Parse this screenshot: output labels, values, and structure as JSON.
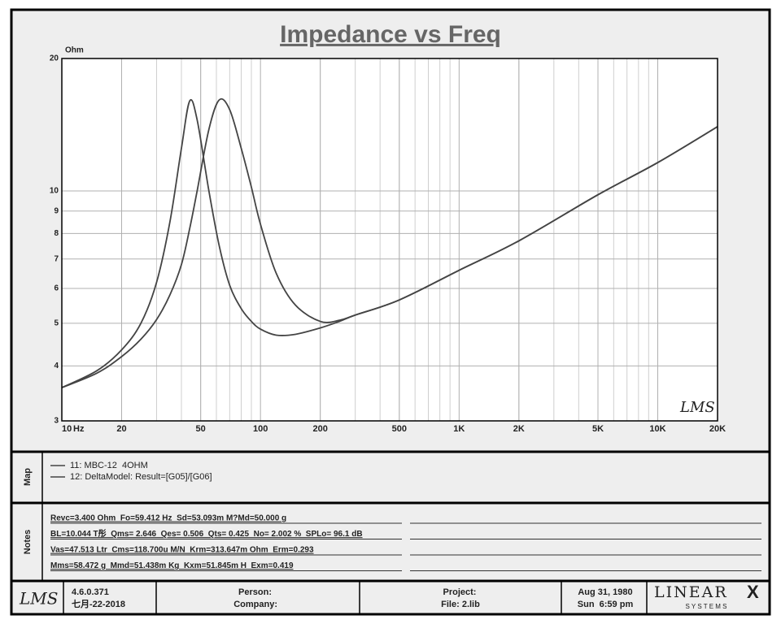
{
  "chart_data": {
    "type": "line",
    "title": "Impedance vs Freq",
    "y_unit": "Ohm",
    "x_unit": "Hz",
    "log_x": true,
    "log_y": true,
    "grid": true,
    "x": [
      10,
      15,
      20,
      25,
      30,
      35,
      40,
      44,
      48,
      55,
      62,
      70,
      80,
      90,
      100,
      120,
      150,
      200,
      250,
      300,
      500,
      1000,
      2000,
      5000,
      10000,
      20000
    ],
    "xlim": [
      10,
      20000
    ],
    "ylim": [
      3,
      20
    ],
    "xticks": [
      10,
      20,
      50,
      100,
      200,
      500,
      {
        "value": 1000,
        "label": "1K"
      },
      {
        "value": 2000,
        "label": "2K"
      },
      {
        "value": 5000,
        "label": "5K"
      },
      {
        "value": 10000,
        "label": "10K"
      },
      {
        "value": 20000,
        "label": "20K"
      }
    ],
    "yticks": [
      3,
      4,
      5,
      6,
      7,
      8,
      9,
      10,
      20
    ],
    "series": [
      {
        "name": "11: MBC-12  4OHM",
        "color": "#444444",
        "values": [
          3.57,
          3.9,
          4.35,
          5.0,
          6.2,
          8.5,
          12.5,
          16.0,
          14.5,
          10.0,
          7.5,
          6.1,
          5.4,
          5.05,
          4.85,
          4.7,
          4.72,
          4.88,
          5.05,
          5.22,
          5.65,
          6.6,
          7.7,
          9.8,
          11.6,
          14.0
        ]
      },
      {
        "name": "12: DeltaModel: Result=[G05]/[G06]",
        "color": "#444444",
        "values": [
          3.57,
          3.85,
          4.2,
          4.6,
          5.1,
          5.8,
          6.8,
          8.2,
          10.0,
          13.8,
          16.1,
          15.3,
          12.5,
          10.2,
          8.4,
          6.5,
          5.5,
          5.05,
          5.08,
          5.22,
          5.65,
          6.6,
          7.7,
          9.8,
          11.6,
          14.0
        ]
      }
    ]
  },
  "map": {
    "label": "Map"
  },
  "notes": {
    "label": "Notes",
    "lines": [
      "Revc=3.400 Ohm  Fo=59.412 Hz  Sd=53.093m M?Md=50.000 g",
      "BL=10.044 T彤  Qms= 2.646  Qes= 0.506  Qts= 0.425  No= 2.002 %  SPLo= 96.1 dB",
      "Vas=47.513 Ltr  Cms=118.700u M/N  Krm=313.647m Ohm  Erm=0.293",
      "Mms=58.472 g  Mmd=51.438m Kg  Kxm=51.845m H  Exm=0.419"
    ]
  },
  "footer": {
    "logo": "LMS",
    "version": "4.6.0.371",
    "build_date": "七月-22-2018",
    "person": "Person:",
    "company": "Company:",
    "project": "Project:",
    "file": "File: 2.lib",
    "date": "Aug 31, 1980",
    "time": "Sun  6:59 pm",
    "brand": "LINEAR",
    "brand_mark": "X",
    "brand_sub": "S Y S T E M S"
  }
}
